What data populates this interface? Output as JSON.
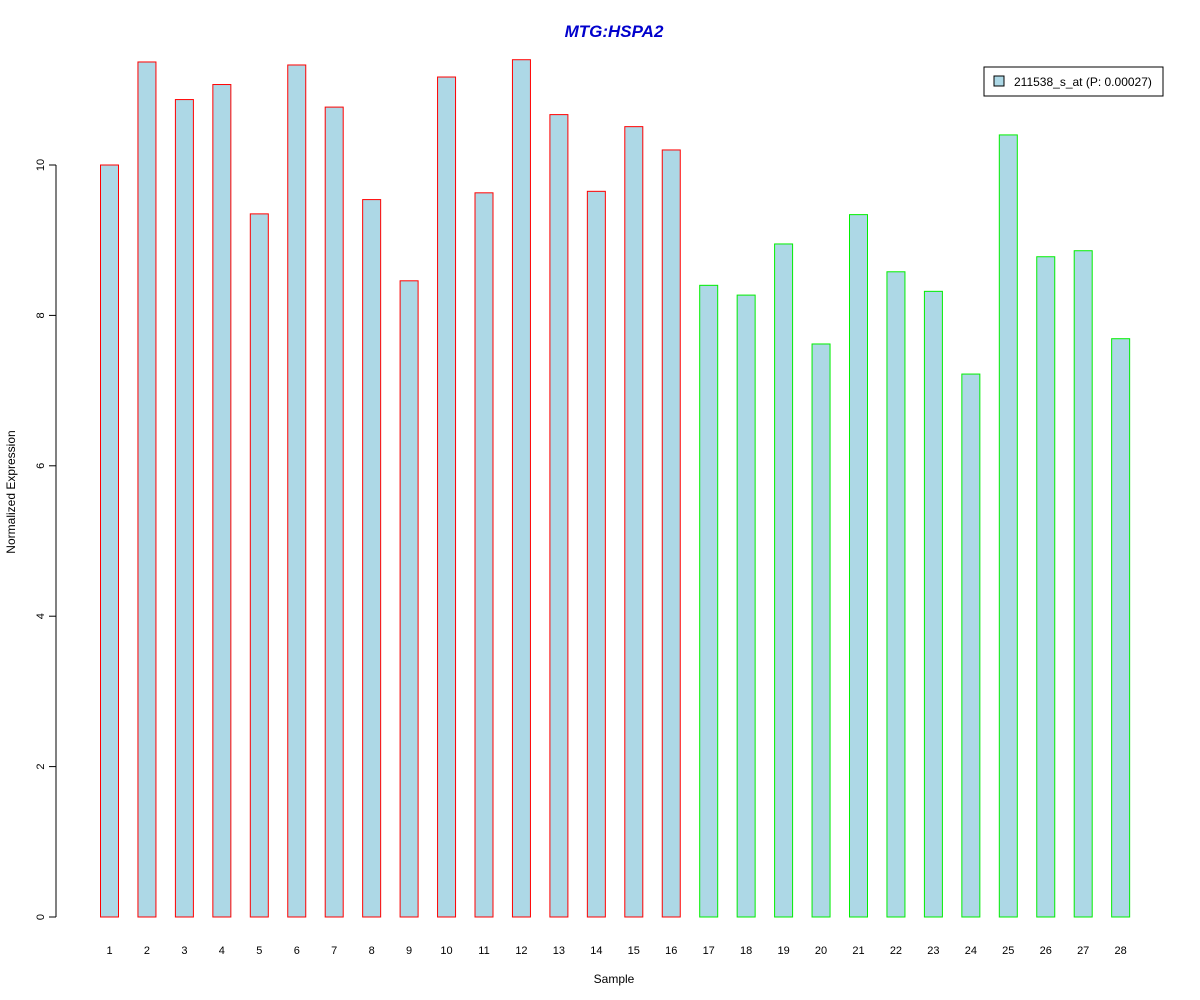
{
  "chart_data": {
    "type": "bar",
    "title": "MTG:HSPA2",
    "title_color": "#0000cc",
    "xlabel": "Sample",
    "ylabel": "Normalized Expression",
    "categories": [
      "1",
      "2",
      "3",
      "4",
      "5",
      "6",
      "7",
      "8",
      "9",
      "10",
      "11",
      "12",
      "13",
      "14",
      "15",
      "16",
      "17",
      "18",
      "19",
      "20",
      "21",
      "22",
      "23",
      "24",
      "25",
      "26",
      "27",
      "28"
    ],
    "series": [
      {
        "name": "211538_s_at (P: 0.00027)",
        "values": [
          10.0,
          11.37,
          10.87,
          11.07,
          9.35,
          11.33,
          10.77,
          9.54,
          8.46,
          11.17,
          9.63,
          11.4,
          10.67,
          9.65,
          10.51,
          10.2,
          8.4,
          8.27,
          8.95,
          7.62,
          9.34,
          8.58,
          8.32,
          7.22,
          10.4,
          8.78,
          8.86,
          7.69
        ]
      }
    ],
    "bar_fill": "#add8e6",
    "group_border_colors": [
      "#ff0000",
      "#ff0000",
      "#ff0000",
      "#ff0000",
      "#ff0000",
      "#ff0000",
      "#ff0000",
      "#ff0000",
      "#ff0000",
      "#ff0000",
      "#ff0000",
      "#ff0000",
      "#ff0000",
      "#ff0000",
      "#ff0000",
      "#ff0000",
      "#00ee00",
      "#00ee00",
      "#00ee00",
      "#00ee00",
      "#00ee00",
      "#00ee00",
      "#00ee00",
      "#00ee00",
      "#00ee00",
      "#00ee00",
      "#00ee00",
      "#00ee00"
    ],
    "ylim": [
      0,
      11.4
    ],
    "yticks": [
      "0",
      "2",
      "4",
      "6",
      "8",
      "10"
    ],
    "grid": false,
    "legend_position": "top-right"
  }
}
